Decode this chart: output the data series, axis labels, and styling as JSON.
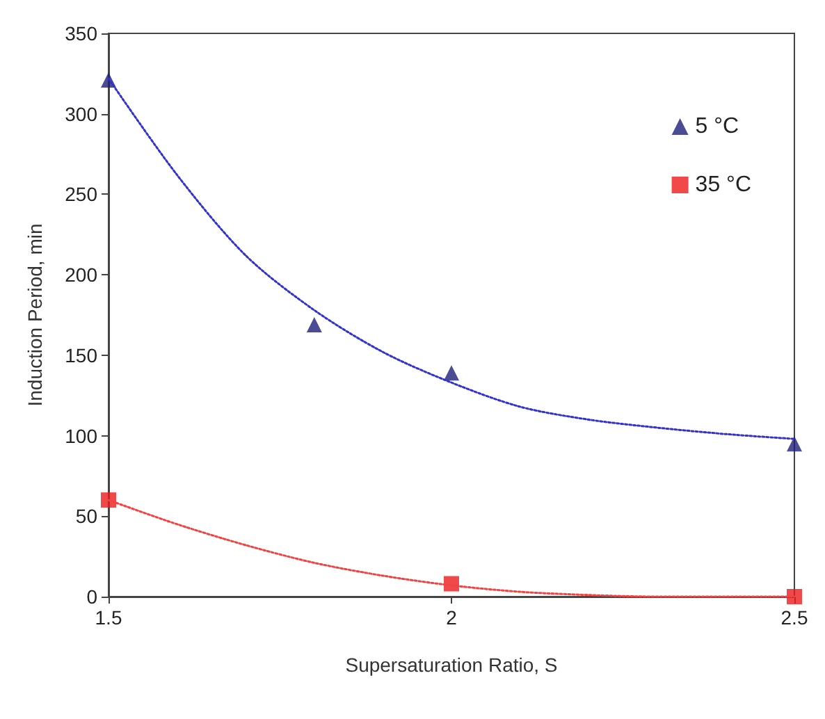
{
  "chart_data": {
    "type": "scatter",
    "xlabel": "Supersaturation Ratio, S",
    "ylabel": "Induction Period, min",
    "xlim": [
      1.5,
      2.5
    ],
    "xticks": [
      1.5,
      2,
      2.5
    ],
    "ylim": [
      0,
      350
    ],
    "yticks": [
      0,
      50,
      100,
      150,
      200,
      250,
      300,
      350
    ],
    "grid": false,
    "legend": "top right",
    "series": [
      {
        "name": "5 °C",
        "marker": "triangle",
        "color": "#1f1f7a",
        "x": [
          1.5,
          1.8,
          2,
          2.5
        ],
        "values": [
          321,
          169,
          139,
          95
        ]
      },
      {
        "name": "35 °C",
        "marker": "square",
        "color": "#ee1c1c",
        "x": [
          1.5,
          2,
          2.5
        ],
        "values": [
          60,
          8,
          0
        ]
      },
      {
        "type": "line",
        "marker": "none",
        "line_style": "dotted",
        "color": "#3333cc",
        "x": [
          1.5,
          1.6,
          1.7,
          1.8,
          1.9,
          2,
          2.1,
          2.2,
          2.3,
          2.4,
          2.5
        ],
        "values": [
          322,
          262,
          212,
          178,
          152,
          133,
          118,
          110,
          105,
          101,
          98
        ]
      },
      {
        "type": "line",
        "marker": "none",
        "line_style": "dotted",
        "color": "#ee4444",
        "x": [
          1.5,
          1.6,
          1.7,
          1.8,
          1.9,
          2,
          2.1,
          2.2,
          2.3,
          2.4,
          2.5
        ],
        "values": [
          60,
          45,
          32,
          21,
          13,
          7,
          3,
          1,
          0,
          0,
          0
        ]
      }
    ]
  }
}
